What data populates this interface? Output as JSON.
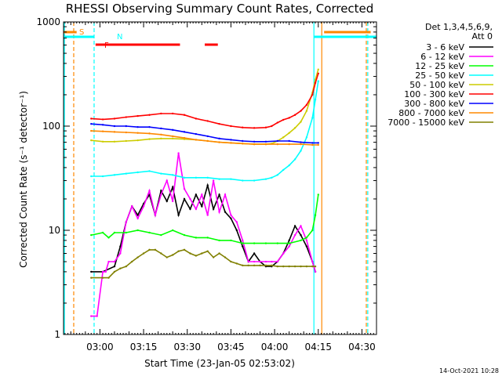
{
  "chart_data": {
    "type": "line",
    "title": "RHESSI Observing Summary Count Rates, Corrected",
    "xlabel": "Start Time (23-Jan-05 02:53:02)",
    "ylabel": "Corrected Count Rate (s⁻¹ detector⁻¹)",
    "y_scale": "log",
    "ylim": [
      1,
      1000
    ],
    "xlim": [
      -5.5,
      102
    ],
    "x_unit": "minutes after 02:53:02",
    "x_ticks": [
      {
        "value": 7,
        "label": "03:00"
      },
      {
        "value": 22,
        "label": "03:15"
      },
      {
        "value": 37,
        "label": "03:30"
      },
      {
        "value": 52,
        "label": "03:45"
      },
      {
        "value": 67,
        "label": "04:00"
      },
      {
        "value": 82,
        "label": "04:15"
      },
      {
        "value": 97,
        "label": "04:30"
      }
    ],
    "y_ticks": [
      {
        "value": 1,
        "label": "1"
      },
      {
        "value": 10,
        "label": "10"
      },
      {
        "value": 100,
        "label": "100"
      },
      {
        "value": 1000,
        "label": "1000"
      }
    ],
    "legend": {
      "header": [
        "Det 1,3,4,5,6,9,",
        "Att 0"
      ],
      "placement": "right, outside plot"
    },
    "series": [
      {
        "name": "3 - 6 keV",
        "color": "#000000",
        "x": [
          4,
          8,
          12,
          14,
          16,
          18,
          20,
          22,
          24,
          26,
          28,
          30,
          32,
          34,
          36,
          38,
          40,
          42,
          44,
          46,
          48,
          50,
          52,
          54,
          56,
          58,
          60,
          62,
          64,
          66,
          68,
          70,
          72,
          74,
          76,
          78,
          80,
          81
        ],
        "y": [
          4,
          4,
          4.5,
          7,
          12,
          17,
          14,
          18,
          22,
          14,
          24,
          19,
          26,
          14,
          20,
          16,
          22,
          17,
          27,
          16,
          22,
          15,
          13,
          10,
          7,
          5,
          6,
          5,
          4.5,
          4.5,
          5,
          6,
          8,
          11,
          9,
          7,
          5,
          4
        ]
      },
      {
        "name": "6 - 12 keV",
        "color": "#ff00ff",
        "x": [
          4,
          6,
          8,
          9,
          10,
          12,
          14,
          16,
          18,
          20,
          22,
          24,
          26,
          28,
          30,
          32,
          34,
          36,
          38,
          40,
          42,
          44,
          46,
          48,
          50,
          52,
          54,
          56,
          58,
          60,
          62,
          64,
          66,
          68,
          70,
          72,
          74,
          76,
          78,
          80,
          81
        ],
        "y": [
          1.5,
          1.5,
          4,
          4,
          5,
          5,
          6,
          12,
          17,
          13,
          17,
          24,
          14,
          22,
          30,
          19,
          55,
          25,
          20,
          16,
          22,
          14,
          30,
          15,
          22,
          14,
          12,
          8,
          5,
          5,
          5,
          5,
          5,
          5,
          6,
          7,
          9,
          11,
          8,
          5,
          4
        ]
      },
      {
        "name": "12 - 25 keV",
        "color": "#00ff00",
        "x": [
          4,
          8,
          10,
          12,
          16,
          20,
          24,
          28,
          32,
          36,
          40,
          44,
          48,
          52,
          56,
          60,
          64,
          68,
          72,
          76,
          78,
          80,
          81,
          82
        ],
        "y": [
          9,
          9.5,
          8.5,
          9.5,
          9.5,
          10,
          9.5,
          9,
          10,
          9,
          8.5,
          8.5,
          8,
          8,
          7.5,
          7.5,
          7.5,
          7.5,
          7.5,
          8,
          8.5,
          10,
          14,
          22
        ]
      },
      {
        "name": "25 - 50 keV",
        "color": "#00ffff",
        "x": [
          4,
          8,
          12,
          16,
          20,
          24,
          28,
          32,
          36,
          40,
          44,
          48,
          52,
          56,
          60,
          64,
          66,
          68,
          70,
          72,
          74,
          76,
          78,
          80,
          81,
          82
        ],
        "y": [
          33,
          33,
          34,
          35,
          36,
          37,
          35,
          34,
          32,
          32,
          32,
          31,
          31,
          30,
          30,
          31,
          32,
          34,
          38,
          42,
          48,
          58,
          78,
          120,
          180,
          270
        ]
      },
      {
        "name": "50 - 100 keV",
        "color": "#cccc00",
        "x": [
          4,
          8,
          12,
          16,
          20,
          24,
          28,
          32,
          36,
          40,
          44,
          48,
          52,
          56,
          60,
          64,
          66,
          68,
          70,
          72,
          74,
          76,
          78,
          80,
          81,
          82
        ],
        "y": [
          73,
          71,
          71,
          72,
          73,
          75,
          76,
          76,
          75,
          74,
          72,
          70,
          69,
          68,
          67,
          67,
          68,
          72,
          78,
          86,
          96,
          110,
          140,
          210,
          280,
          350
        ]
      },
      {
        "name": "100 - 300 keV",
        "color": "#ff0000",
        "x": [
          4,
          8,
          12,
          16,
          20,
          24,
          28,
          32,
          36,
          40,
          44,
          48,
          52,
          56,
          60,
          64,
          66,
          68,
          70,
          72,
          74,
          76,
          78,
          80,
          81,
          82
        ],
        "y": [
          118,
          116,
          118,
          122,
          125,
          128,
          132,
          132,
          128,
          118,
          112,
          105,
          100,
          97,
          96,
          97,
          100,
          108,
          115,
          120,
          128,
          140,
          160,
          200,
          260,
          320
        ]
      },
      {
        "name": "300 - 800 keV",
        "color": "#0000ff",
        "x": [
          4,
          8,
          12,
          16,
          20,
          24,
          28,
          32,
          36,
          40,
          44,
          48,
          52,
          56,
          60,
          64,
          68,
          72,
          76,
          80,
          82
        ],
        "y": [
          105,
          103,
          100,
          100,
          98,
          98,
          95,
          92,
          88,
          84,
          80,
          76,
          74,
          72,
          71,
          71,
          72,
          72,
          70,
          69,
          69
        ]
      },
      {
        "name": "800 - 7000 keV",
        "color": "#ff8800",
        "x": [
          4,
          8,
          12,
          16,
          20,
          24,
          28,
          32,
          36,
          40,
          44,
          48,
          52,
          56,
          60,
          64,
          68,
          72,
          76,
          80,
          82
        ],
        "y": [
          90,
          89,
          88,
          87,
          86,
          85,
          83,
          80,
          77,
          74,
          72,
          70,
          69,
          68,
          67,
          67,
          67,
          67,
          67,
          66,
          66
        ]
      },
      {
        "name": "7000 - 15000 keV",
        "color": "#808000",
        "x": [
          4,
          8,
          10,
          12,
          14,
          16,
          18,
          20,
          22,
          24,
          26,
          28,
          30,
          32,
          34,
          36,
          38,
          40,
          42,
          44,
          46,
          48,
          50,
          52,
          54,
          56,
          58,
          60,
          62,
          64,
          66,
          68,
          70,
          72,
          74,
          76,
          78,
          80,
          81
        ],
        "y": [
          3.5,
          3.5,
          3.5,
          4,
          4.3,
          4.5,
          5,
          5.5,
          6,
          6.5,
          6.5,
          6,
          5.5,
          5.8,
          6.3,
          6.5,
          6,
          5.7,
          6,
          6.3,
          5.5,
          6,
          5.5,
          5,
          4.8,
          4.6,
          4.6,
          4.6,
          4.6,
          4.6,
          4.6,
          4.5,
          4.5,
          4.5,
          4.5,
          4.5,
          4.5,
          4.5,
          4.5
        ]
      }
    ],
    "flags": [
      {
        "label": "S",
        "color": "#ff8800",
        "segments": [
          [
            -5.5,
            -1
          ],
          [
            84,
            100
          ]
        ]
      },
      {
        "label": "N",
        "color": "#00ffff",
        "segments": [
          [
            -5.5,
            5
          ],
          [
            80.5,
            102
          ]
        ]
      },
      {
        "label": "F",
        "color": "#ff0000",
        "segments": [
          [
            5.5,
            34.5
          ],
          [
            43,
            47.5
          ]
        ]
      }
    ],
    "vertical_lines": [
      {
        "x": -2,
        "color": "#ff8800",
        "dashed": true
      },
      {
        "x": 5,
        "color": "#00ffff",
        "dashed": true
      },
      {
        "x": 80.5,
        "color": "#00ffff",
        "dashed": false
      },
      {
        "x": 83.2,
        "color": "#ff8800",
        "dashed": false
      },
      {
        "x": 98.5,
        "color": "#ff8800",
        "dashed": true
      },
      {
        "x": 99,
        "color": "#00ffff",
        "dashed": true
      },
      {
        "x": -5.2,
        "color": "#00ffff",
        "dashed": false
      }
    ],
    "grid": false
  },
  "footer": {
    "timestamp": "14-Oct-2021 10:28"
  }
}
